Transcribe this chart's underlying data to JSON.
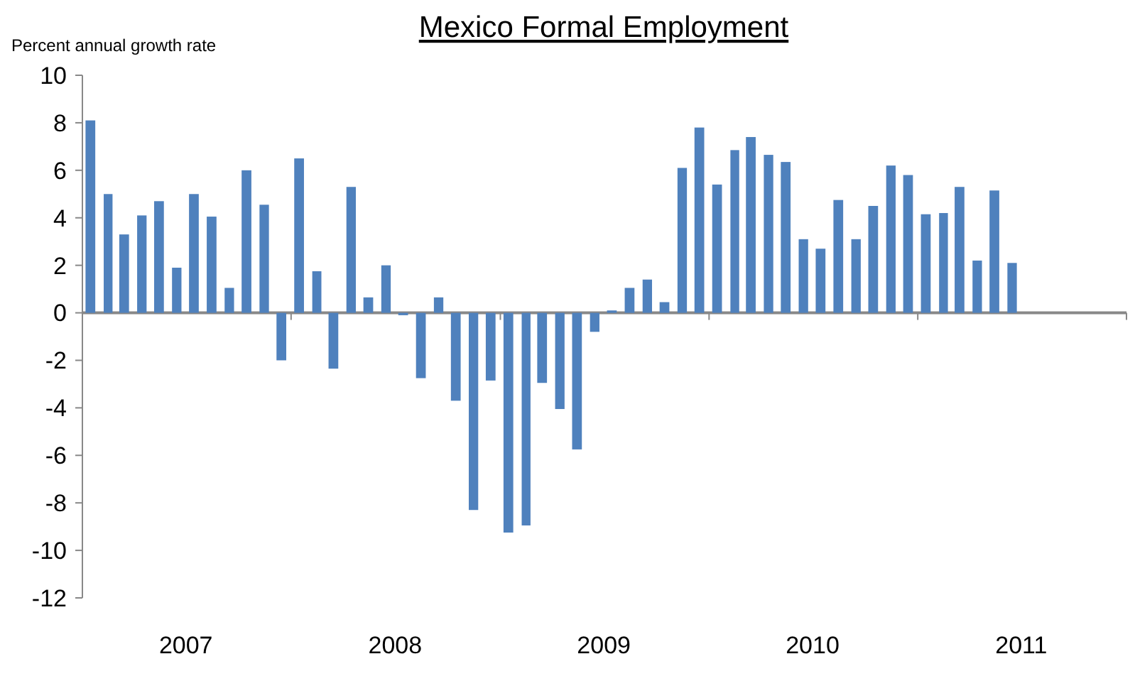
{
  "chart_data": {
    "type": "bar",
    "title": "Mexico Formal Employment",
    "ylabel": "Percent annual growth rate",
    "x": [
      "2007-01-15",
      "2007-02-15",
      "2007-03-15",
      "2007-04-15",
      "2007-05-15",
      "2007-06-15",
      "2007-07-15",
      "2007-08-15",
      "2007-09-15",
      "2007-10-15",
      "2007-11-15",
      "2007-12-15",
      "2008-01-15",
      "2008-02-15",
      "2008-03-15",
      "2008-04-15",
      "2008-05-15",
      "2008-06-15",
      "2008-07-15",
      "2008-08-15",
      "2008-09-15",
      "2008-10-15",
      "2008-11-15",
      "2008-12-15",
      "2009-01-15",
      "2009-02-15",
      "2009-03-15",
      "2009-04-15",
      "2009-05-15",
      "2009-06-15",
      "2009-07-15",
      "2009-08-15",
      "2009-09-15",
      "2009-10-15",
      "2009-11-15",
      "2009-12-15",
      "2010-01-15",
      "2010-02-15",
      "2010-03-15",
      "2010-04-15",
      "2010-05-15",
      "2010-06-15",
      "2010-07-15",
      "2010-08-15",
      "2010-09-15",
      "2010-10-15",
      "2010-11-15",
      "2010-12-15",
      "2011-01-15",
      "2011-02-15",
      "2011-03-15",
      "2011-04-15",
      "2011-05-15",
      "2011-06-15"
    ],
    "values": [
      8.1,
      5,
      3.3,
      4.1,
      4.7,
      1.9,
      5,
      4.05,
      1.05,
      6,
      4.55,
      -2,
      6.5,
      1.75,
      -2.35,
      5.3,
      0.65,
      2,
      -0.1,
      -2.75,
      0.65,
      -3.7,
      -8.3,
      -2.85,
      -9.25,
      -8.95,
      -2.95,
      -4.05,
      -5.75,
      -0.8,
      0.1,
      1.05,
      1.4,
      0.45,
      6.1,
      7.8,
      5.4,
      6.85,
      7.4,
      6.65,
      6.35,
      3.1,
      2.7,
      4.75,
      3.1,
      4.5,
      6.2,
      5.8,
      4.15,
      4.2,
      5.3,
      2.2,
      5.15,
      2.1
    ],
    "color": "#4f81bd",
    "xlim": [
      "2007-01",
      "2012-01"
    ],
    "xticks": [
      {
        "value": "2007-07",
        "label": "2007"
      },
      {
        "value": "2008-01",
        "label": null
      },
      {
        "value": "2008-07",
        "label": "2008"
      },
      {
        "value": "2009-01",
        "label": null
      },
      {
        "value": "2009-07",
        "label": "2009"
      },
      {
        "value": "2010-01",
        "label": null
      },
      {
        "value": "2010-07",
        "label": "2010"
      },
      {
        "value": "2011-01",
        "label": null
      },
      {
        "value": "2011-07",
        "label": "2011"
      },
      {
        "value": "2012-01",
        "label": null
      }
    ],
    "ylim": [
      -12,
      10
    ],
    "yticks": [
      -12,
      -10,
      -8,
      -6,
      -4,
      -2,
      0,
      2,
      4,
      6,
      8,
      10
    ]
  }
}
